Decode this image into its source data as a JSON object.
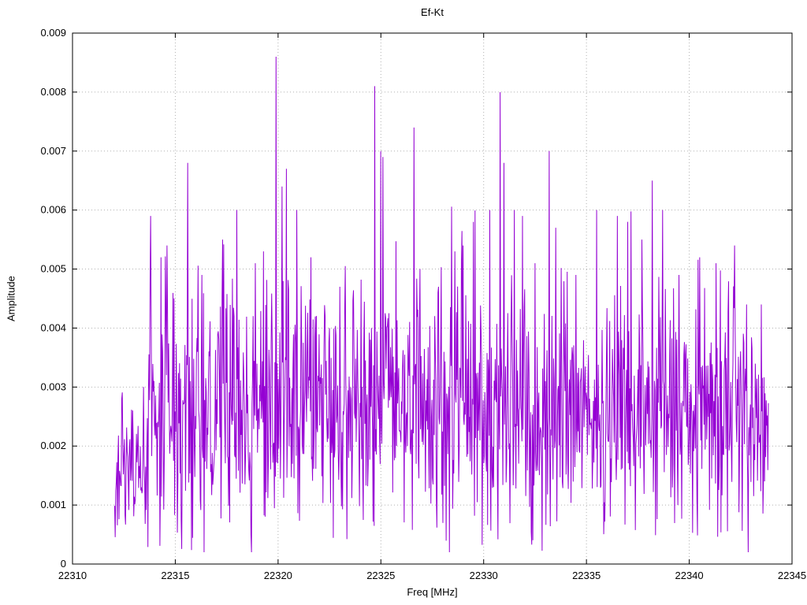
{
  "page": {
    "background": "#ffffff"
  },
  "chart_data": {
    "type": "line",
    "title": "Ef-Kt",
    "xlabel": "Freq [MHz]",
    "ylabel": "Amplitude",
    "xlim": [
      22310,
      22345
    ],
    "ylim": [
      0,
      0.009
    ],
    "xticks": [
      22310,
      22315,
      22320,
      22325,
      22330,
      22335,
      22340,
      22345
    ],
    "xtick_labels": [
      "22310",
      "22315",
      "22320",
      "22325",
      "22330",
      "22335",
      "22340",
      "22345"
    ],
    "yticks": [
      0,
      0.001,
      0.002,
      0.003,
      0.004,
      0.005,
      0.006,
      0.007,
      0.008,
      0.009
    ],
    "ytick_labels": [
      "0",
      "0.001",
      "0.002",
      "0.003",
      "0.004",
      "0.005",
      "0.006",
      "0.007",
      "0.008",
      "0.009"
    ],
    "grid": "dotted",
    "grid_color": "#b0b0b0",
    "border_color": "#000000",
    "legend": "none",
    "series": [
      {
        "name": "Ef-Kt",
        "color": "#9400d3",
        "x_start": 22312.05,
        "x_end": 22343.85,
        "n_points": 1200,
        "noise_mean": 0.0026,
        "noise_std": 0.001,
        "noise_min": 0.0002,
        "noise_max": 0.0062,
        "spike_prob": 0.05,
        "spike_extra": 0.002,
        "dip_prob": 0.012,
        "ramp_end_x": 22313.6,
        "ramp_factor": 0.6,
        "tail_start_x": 22342.8,
        "tail_factor": 0.85,
        "seed": 42,
        "peaks": [
          [
            22313.8,
            0.0059
          ],
          [
            22314.3,
            0.0052
          ],
          [
            22314.6,
            0.0054
          ],
          [
            22315.6,
            0.0068
          ],
          [
            22316.3,
            0.0049
          ],
          [
            22317.3,
            0.0055
          ],
          [
            22318.0,
            0.006
          ],
          [
            22318.9,
            0.0051
          ],
          [
            22319.3,
            0.0053
          ],
          [
            22319.9,
            0.0086
          ],
          [
            22320.2,
            0.0064
          ],
          [
            22320.4,
            0.0067
          ],
          [
            22320.9,
            0.006
          ],
          [
            22321.6,
            0.0052
          ],
          [
            22322.5,
            0.004
          ],
          [
            22323.0,
            0.0047
          ],
          [
            22324.7,
            0.0081
          ],
          [
            22325.0,
            0.007
          ],
          [
            22325.1,
            0.0069
          ],
          [
            22326.6,
            0.0074
          ],
          [
            22326.9,
            0.005
          ],
          [
            22327.8,
            0.0047
          ],
          [
            22328.6,
            0.0053
          ],
          [
            22329.0,
            0.0054
          ],
          [
            22329.5,
            0.0058
          ],
          [
            22330.3,
            0.006
          ],
          [
            22330.8,
            0.008
          ],
          [
            22331.0,
            0.0068
          ],
          [
            22331.5,
            0.006
          ],
          [
            22331.9,
            0.0059
          ],
          [
            22332.5,
            0.0051
          ],
          [
            22333.2,
            0.007
          ],
          [
            22333.5,
            0.0057
          ],
          [
            22334.5,
            0.0049
          ],
          [
            22335.5,
            0.006
          ],
          [
            22336.5,
            0.0059
          ],
          [
            22337.0,
            0.0058
          ],
          [
            22337.7,
            0.0055
          ],
          [
            22338.2,
            0.0065
          ],
          [
            22338.7,
            0.006
          ],
          [
            22339.5,
            0.0049
          ],
          [
            22340.5,
            0.0052
          ],
          [
            22341.3,
            0.0051
          ],
          [
            22342.2,
            0.0054
          ],
          [
            22342.8,
            0.0044
          ],
          [
            22343.5,
            0.0044
          ]
        ]
      }
    ]
  }
}
